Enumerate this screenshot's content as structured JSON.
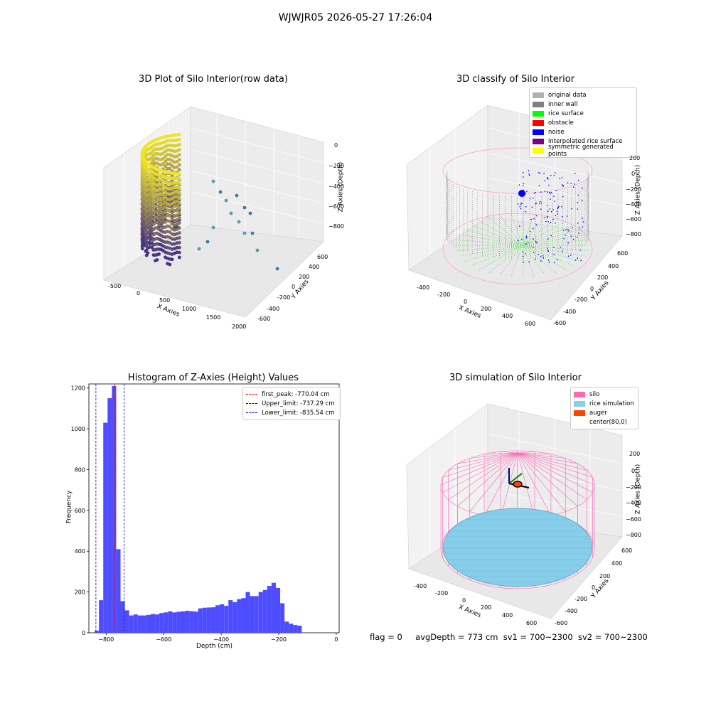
{
  "title": "WJWJR05 2026-05-27 17:26:04",
  "footer": {
    "flag": "flag = 0",
    "avg_depth": "avgDepth = 773 cm",
    "sv1": "sv1 = 700~2300",
    "sv2": "sv2 = 700~2300"
  },
  "colors": {
    "original": "#b0b0b0",
    "inner_wall": "#808080",
    "rice_surface": "#00ff00",
    "obstacle": "#ff0000",
    "noise": "#0000ff",
    "interpolated": "#800080",
    "symmetric": "#ffff00",
    "silo": "#ff69b4",
    "rice_sim": "#87ceeb",
    "auger": "#ff4500",
    "hist": "#4d4dff"
  },
  "chart_data": [
    {
      "type": "scatter",
      "title": "3D Plot of Silo Interior(row data)",
      "xlabel": "X Axies",
      "ylabel": "Y Axies",
      "zlabel": "Z Axies (Depth)",
      "x_ticks": [
        "-500",
        "0",
        "500",
        "1000",
        "1500",
        "2000"
      ],
      "y_ticks": [
        "-600",
        "-400",
        "-200",
        "0",
        "200",
        "400",
        "600"
      ],
      "z_ticks": [
        "0",
        "−200",
        "−400",
        "−600",
        "−800"
      ]
    },
    {
      "type": "scatter",
      "title": "3D classify of Silo Interior",
      "xlabel": "X Axies",
      "ylabel": "Y Axies",
      "zlabel": "Z Axies (Depth)",
      "x_ticks": [
        "-400",
        "-200",
        "0",
        "200",
        "400",
        "600"
      ],
      "y_ticks": [
        "-600",
        "-400",
        "-200",
        "0",
        "200",
        "400",
        "600"
      ],
      "z_ticks": [
        "200",
        "0",
        "−200",
        "−400",
        "−600",
        "−800"
      ],
      "legend": [
        "original data",
        "inner wall",
        "rice surface",
        "obstacle",
        "noise",
        "interpolated rice surface",
        "symmetric generated points"
      ]
    },
    {
      "type": "bar",
      "title": "Histogram of Z-Axies (Height) Values",
      "xlabel": "Depth (cm)",
      "ylabel": "Frequency",
      "xlim": [
        -860,
        10
      ],
      "ylim": [
        0,
        1220
      ],
      "x_ticks": [
        -800,
        -600,
        -400,
        -200,
        0
      ],
      "x_tick_labels": [
        "−800",
        "−600",
        "−400",
        "−200",
        "0"
      ],
      "y_ticks": [
        0,
        200,
        400,
        600,
        800,
        1000,
        1200
      ],
      "bin_start": -840,
      "bin_width": 15,
      "counts": [
        10,
        160,
        1030,
        1150,
        1210,
        410,
        155,
        110,
        85,
        90,
        85,
        85,
        88,
        92,
        90,
        97,
        100,
        105,
        100,
        103,
        105,
        108,
        106,
        104,
        120,
        123,
        124,
        125,
        135,
        140,
        132,
        160,
        150,
        165,
        170,
        200,
        180,
        180,
        200,
        210,
        230,
        245,
        220,
        145,
        55,
        45,
        38,
        35
      ],
      "vlines": [
        {
          "label": "first_peak: -770.04 cm",
          "x": -770.04,
          "color": "#ff0000"
        },
        {
          "label": "Upper_limit: -737.29 cm",
          "x": -737.29,
          "color": "#0000cc"
        },
        {
          "label": "Lower_limit: -835.54 cm",
          "x": -835.54,
          "color": "#0000cc"
        }
      ]
    },
    {
      "type": "scatter",
      "title": "3D simulation of Silo Interior",
      "xlabel": "X Axies",
      "ylabel": "Y Axies",
      "zlabel": "Z Axies (Depth)",
      "x_ticks": [
        "-400",
        "-200",
        "0",
        "200",
        "400",
        "600"
      ],
      "y_ticks": [
        "-600",
        "-400",
        "-200",
        "0",
        "200",
        "400",
        "600"
      ],
      "z_ticks": [
        "200",
        "0",
        "−200",
        "−400",
        "−600",
        "−800"
      ],
      "legend": [
        "silo",
        "rice simulation",
        "auger",
        "center(80,0)"
      ]
    }
  ]
}
